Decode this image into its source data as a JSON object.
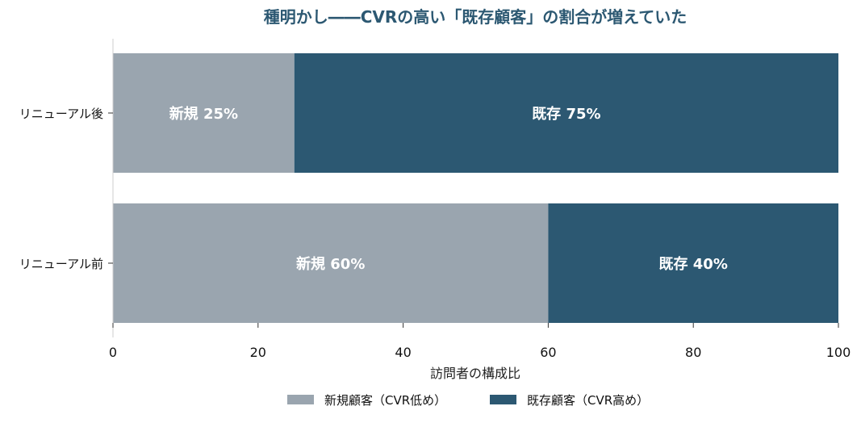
{
  "chart_data": {
    "type": "bar",
    "orientation": "horizontal",
    "stacked": true,
    "title": "種明かし――CVRの高い「既存顧客」の割合が増えていた",
    "xlabel": "訪問者の構成比",
    "ylabel": "",
    "xlim": [
      0,
      100
    ],
    "xticks": [
      "0",
      "20",
      "40",
      "60",
      "80",
      "100"
    ],
    "grid": false,
    "legend_position": "bottom-center",
    "categories": [
      "リニューアル後",
      "リニューアル前"
    ],
    "series": [
      {
        "name": "新規顧客（CVR低め）",
        "short_label": "新規",
        "color": "#9aa5af",
        "values": [
          25,
          60
        ],
        "data_labels": [
          "新規 25%",
          "新規 60%"
        ]
      },
      {
        "name": "既存顧客（CVR高め）",
        "short_label": "既存",
        "color": "#2c5872",
        "values": [
          75,
          40
        ],
        "data_labels": [
          "既存 75%",
          "既存 40%"
        ]
      }
    ],
    "title_color": "#2c5872"
  }
}
